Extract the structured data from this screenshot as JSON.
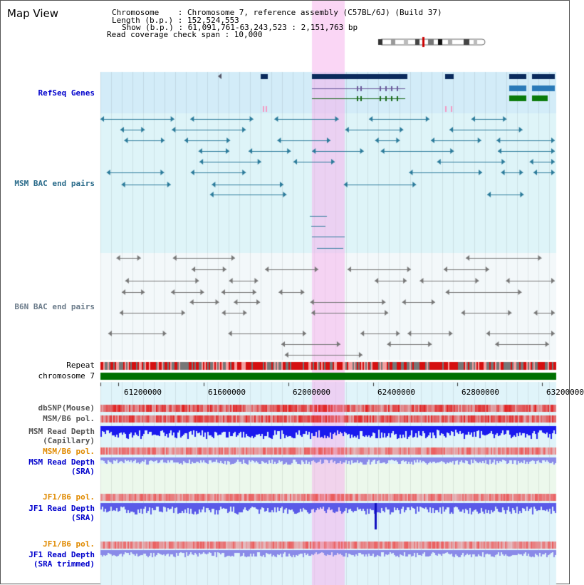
{
  "view": {
    "title": "Map View"
  },
  "info": {
    "line1": "Chromosome    : Chromosome 7, reference assembly (C57BL/6J) (Build 37)",
    "line2": "Length (b.p.) : 152,524,553",
    "line3": "Show (b.p.) : 61,091,761-63,243,523 : 2,151,763 bp",
    "line4": "Read coverage check span : 10,000"
  },
  "tracks": {
    "refseq": "RefSeq Genes",
    "msm_bac": "MSM BAC end pairs",
    "b6n_bac": "B6N BAC end pairs",
    "repeat": "Repeat",
    "chromosome": "chromosome 7",
    "dbsnp": "dbSNP(Mouse)",
    "msm_b6_pol": "MSM/B6 pol.",
    "msm_depth_cap_1": "MSM Read Depth",
    "msm_depth_cap_2": "(Capillary)",
    "msm_b6_pol_sra": "MSM/B6 pol.",
    "msm_depth_sra_1": "MSM Read Depth",
    "msm_depth_sra_2": "(SRA)",
    "jf1_b6_pol": "JF1/B6 pol.",
    "jf1_depth_1": "JF1 Read Depth",
    "jf1_depth_2": "(SRA)",
    "jf1_b6_pol_trim": "JF1/B6 pol.",
    "jf1_trim_1": "JF1 Read Depth",
    "jf1_trim_2": "(SRA trimmed)"
  },
  "axis": {
    "ticks": [
      "61200000",
      "61600000",
      "62000000",
      "62400000",
      "62800000",
      "63200000"
    ]
  },
  "colors": {
    "label_blue": "#0000cc",
    "label_teal": "#2a6b8a",
    "label_gray": "#6b7b8a",
    "label_orange": "#e08a00",
    "highlight": "#f6c6ee",
    "refseq_bg": "#d3ecf8",
    "msm_bg": "#def4f8",
    "b6n_bg": "#f3f8fa",
    "chrom_green": "#007000"
  }
}
